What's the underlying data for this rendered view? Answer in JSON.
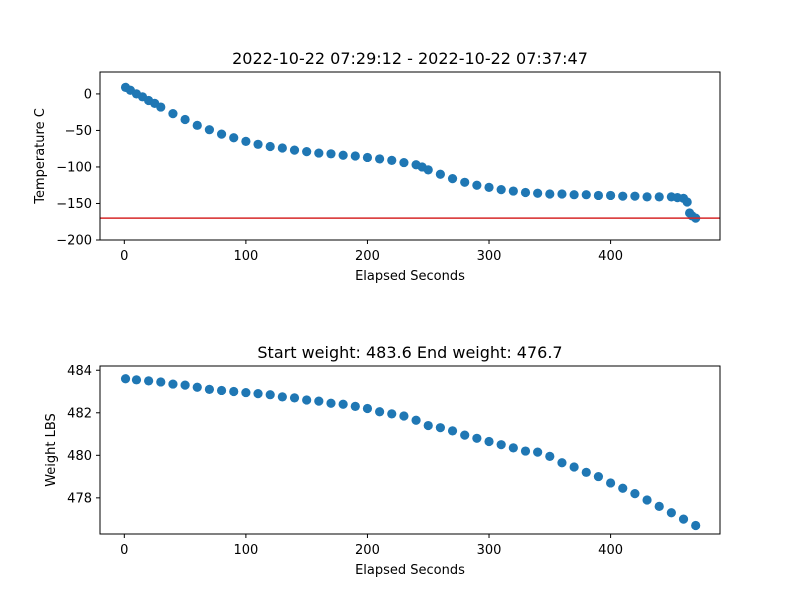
{
  "chart_data": [
    {
      "type": "scatter",
      "title": "2022-10-22 07:29:12 - 2022-10-22 07:37:47",
      "xlabel": "Elapsed Seconds",
      "ylabel": "Temperature C",
      "xlim": [
        -20,
        490
      ],
      "ylim": [
        -200,
        30
      ],
      "xticks": [
        0,
        100,
        200,
        300,
        400
      ],
      "yticks": [
        0,
        -50,
        -100,
        -150,
        -200
      ],
      "xtick_labels": [
        "0",
        "100",
        "200",
        "300",
        "400"
      ],
      "ytick_labels": [
        "0",
        "−50",
        "−100",
        "−150",
        "−200"
      ],
      "grid": false,
      "hline": {
        "y": -170,
        "color": "#d62728"
      },
      "point_color": "#1f77b4",
      "x": [
        1,
        5,
        10,
        15,
        20,
        25,
        30,
        40,
        50,
        60,
        70,
        80,
        90,
        100,
        110,
        120,
        130,
        140,
        150,
        160,
        170,
        180,
        190,
        200,
        210,
        220,
        230,
        240,
        245,
        250,
        260,
        270,
        280,
        290,
        300,
        310,
        320,
        330,
        340,
        350,
        360,
        370,
        380,
        390,
        400,
        410,
        420,
        430,
        440,
        450,
        455,
        460,
        463,
        465,
        467,
        470
      ],
      "y": [
        9,
        5,
        0,
        -4,
        -9,
        -13,
        -18,
        -27,
        -35,
        -43,
        -49,
        -55,
        -60,
        -65,
        -69,
        -72,
        -74,
        -77,
        -79,
        -81,
        -82,
        -84,
        -85,
        -87,
        -89,
        -91,
        -94,
        -97,
        -100,
        -104,
        -110,
        -116,
        -121,
        -125,
        -128,
        -131,
        -133,
        -135,
        -136,
        -137,
        -137,
        -138,
        -138,
        -139,
        -139,
        -140,
        -140,
        -141,
        -141,
        -141,
        -142,
        -143,
        -148,
        -163,
        -167,
        -170
      ]
    },
    {
      "type": "scatter",
      "title": "Start weight: 483.6 End weight: 476.7",
      "xlabel": "Elapsed Seconds",
      "ylabel": "Weight LBS",
      "xlim": [
        -20,
        490
      ],
      "ylim": [
        476.3,
        484.2
      ],
      "xticks": [
        0,
        100,
        200,
        300,
        400
      ],
      "yticks": [
        478,
        480,
        482,
        484
      ],
      "xtick_labels": [
        "0",
        "100",
        "200",
        "300",
        "400"
      ],
      "ytick_labels": [
        "478",
        "480",
        "482",
        "484"
      ],
      "grid": false,
      "point_color": "#1f77b4",
      "x": [
        1,
        10,
        20,
        30,
        40,
        50,
        60,
        70,
        80,
        90,
        100,
        110,
        120,
        130,
        140,
        150,
        160,
        170,
        180,
        190,
        200,
        210,
        220,
        230,
        240,
        250,
        260,
        270,
        280,
        290,
        300,
        310,
        320,
        330,
        340,
        350,
        360,
        370,
        380,
        390,
        400,
        410,
        420,
        430,
        440,
        450,
        460,
        470
      ],
      "y": [
        483.6,
        483.55,
        483.5,
        483.45,
        483.35,
        483.3,
        483.2,
        483.1,
        483.05,
        483.0,
        482.95,
        482.9,
        482.85,
        482.75,
        482.7,
        482.6,
        482.55,
        482.45,
        482.4,
        482.3,
        482.2,
        482.05,
        481.95,
        481.85,
        481.65,
        481.4,
        481.3,
        481.15,
        480.95,
        480.8,
        480.65,
        480.5,
        480.35,
        480.2,
        480.15,
        479.95,
        479.65,
        479.45,
        479.2,
        479.0,
        478.7,
        478.45,
        478.2,
        477.9,
        477.6,
        477.3,
        477.0,
        476.7
      ]
    }
  ]
}
